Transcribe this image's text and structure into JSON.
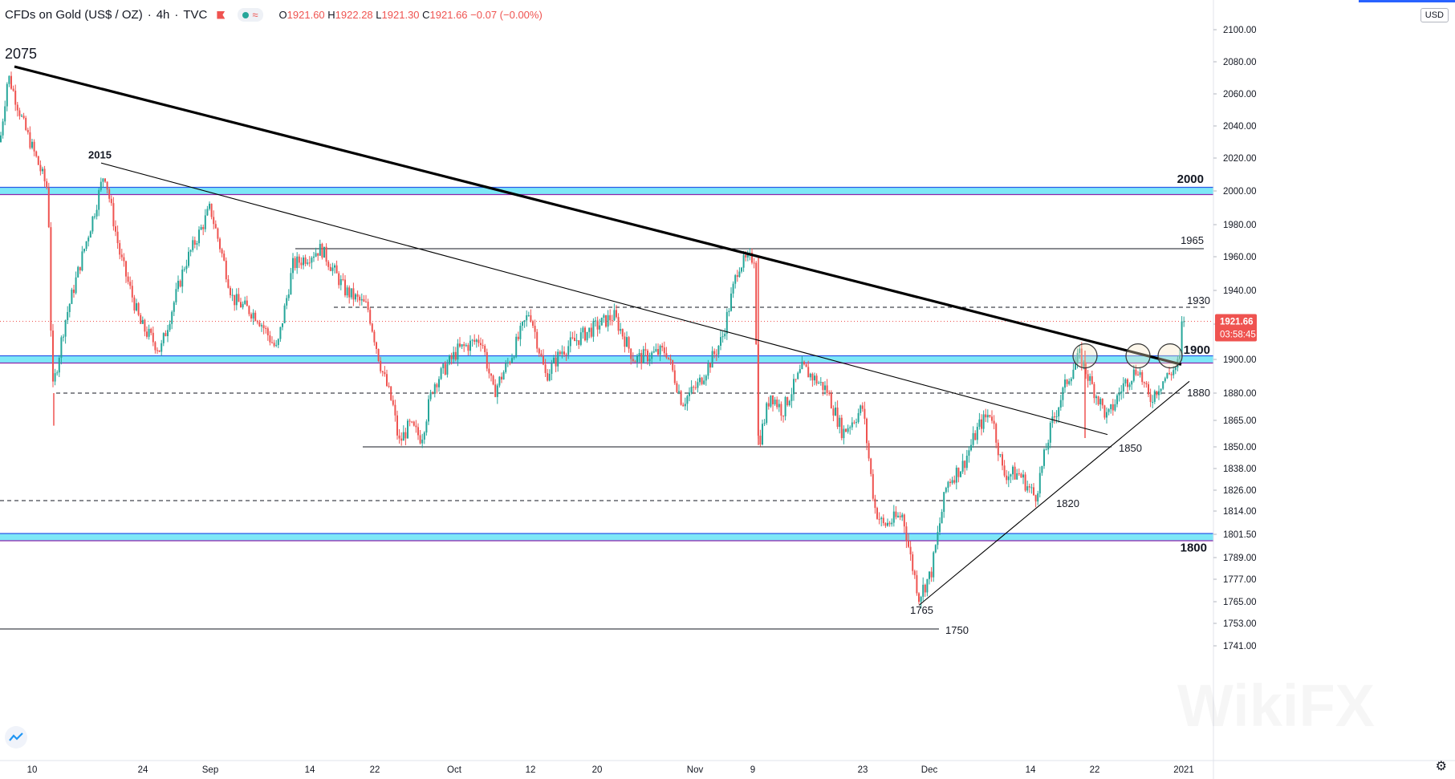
{
  "header": {
    "symbol": "CFDs on Gold (US$ / OZ)",
    "interval": "4h",
    "source": "TVC",
    "open_label": "O",
    "open": "1921.60",
    "high_label": "H",
    "high": "1922.28",
    "low_label": "L",
    "low": "1921.30",
    "close_label": "C",
    "close": "1921.66",
    "change": "−0.07 (−0.00%)"
  },
  "currency_button": "USD",
  "price_axis": {
    "ticks": [
      2100,
      2080,
      2060,
      2040,
      2020,
      2000,
      1980,
      1960,
      1940,
      1920,
      1900,
      1880,
      1865,
      1850,
      1838,
      1826,
      1814,
      1801.5,
      1789,
      1777,
      1765,
      1753,
      1741
    ],
    "tick_labels": [
      "2100.00",
      "2080.00",
      "2060.00",
      "2040.00",
      "2020.00",
      "2000.00",
      "1980.00",
      "1960.00",
      "1940.00",
      "1920.00",
      "1900.00",
      "1880.00",
      "1865.00",
      "1850.00",
      "1838.00",
      "1826.00",
      "1814.00",
      "1801.50",
      "1789.00",
      "1777.00",
      "1765.00",
      "1753.00",
      "1741.00"
    ],
    "last_price_label": "1921.66",
    "countdown_label": "03:58:45"
  },
  "colors": {
    "up": "#26a69a",
    "down": "#ef5350",
    "zone_fill": "#7ee8f7",
    "zone_border": "#2c59e8",
    "zone_inner": "#8e24aa",
    "trendline": "#000000",
    "price_line": "#ef5350",
    "axis_text": "#131722",
    "circle": "#d9c9a0"
  },
  "chart_data": {
    "type": "candlestick",
    "title": "CFDs on Gold (US$ / OZ) · 4h · TVC",
    "x_axis_labels": [
      "10",
      "24",
      "Sep",
      "14",
      "22",
      "Oct",
      "12",
      "20",
      "Nov",
      "9",
      "23",
      "Dec",
      "14",
      "22",
      "2021"
    ],
    "ylim": [
      1733,
      2105
    ],
    "path_points": [
      [
        0,
        2030
      ],
      [
        10,
        2072
      ],
      [
        30,
        2040
      ],
      [
        60,
        2000
      ],
      [
        65,
        1880
      ],
      [
        80,
        1920
      ],
      [
        120,
        1992
      ],
      [
        130,
        2012
      ],
      [
        150,
        1960
      ],
      [
        175,
        1920
      ],
      [
        200,
        1905
      ],
      [
        230,
        1955
      ],
      [
        262,
        1990
      ],
      [
        290,
        1935
      ],
      [
        320,
        1925
      ],
      [
        345,
        1905
      ],
      [
        365,
        1955
      ],
      [
        400,
        1965
      ],
      [
        430,
        1940
      ],
      [
        458,
        1930
      ],
      [
        475,
        1895
      ],
      [
        490,
        1872
      ],
      [
        497,
        1852
      ],
      [
        510,
        1862
      ],
      [
        525,
        1855
      ],
      [
        540,
        1885
      ],
      [
        570,
        1905
      ],
      [
        600,
        1912
      ],
      [
        615,
        1880
      ],
      [
        640,
        1905
      ],
      [
        660,
        1928
      ],
      [
        680,
        1890
      ],
      [
        700,
        1905
      ],
      [
        730,
        1915
      ],
      [
        765,
        1925
      ],
      [
        790,
        1900
      ],
      [
        830,
        1905
      ],
      [
        850,
        1875
      ],
      [
        870,
        1885
      ],
      [
        900,
        1912
      ],
      [
        920,
        1955
      ],
      [
        940,
        1960
      ],
      [
        945,
        1851
      ],
      [
        960,
        1880
      ],
      [
        975,
        1870
      ],
      [
        1000,
        1895
      ],
      [
        1030,
        1882
      ],
      [
        1050,
        1858
      ],
      [
        1075,
        1872
      ],
      [
        1090,
        1816
      ],
      [
        1100,
        1806
      ],
      [
        1125,
        1812
      ],
      [
        1135,
        1788
      ],
      [
        1145,
        1768
      ],
      [
        1160,
        1780
      ],
      [
        1180,
        1830
      ],
      [
        1200,
        1840
      ],
      [
        1220,
        1862
      ],
      [
        1235,
        1870
      ],
      [
        1250,
        1835
      ],
      [
        1270,
        1835
      ],
      [
        1290,
        1822
      ],
      [
        1310,
        1862
      ],
      [
        1330,
        1888
      ],
      [
        1345,
        1902
      ],
      [
        1360,
        1885
      ],
      [
        1380,
        1866
      ],
      [
        1400,
        1885
      ],
      [
        1418,
        1895
      ],
      [
        1432,
        1876
      ],
      [
        1450,
        1888
      ],
      [
        1465,
        1895
      ],
      [
        1470,
        1900
      ],
      [
        1476,
        1921.66
      ]
    ],
    "horizontal_levels": [
      {
        "label": "2075",
        "value": 2075,
        "style": "marker"
      },
      {
        "label": "2015",
        "value": 2015,
        "style": "marker"
      },
      {
        "label": "2000",
        "value": 2000,
        "style": "zone"
      },
      {
        "label": "1965",
        "value": 1965,
        "style": "solid"
      },
      {
        "label": "1930",
        "value": 1930,
        "style": "dashed"
      },
      {
        "label": "1900",
        "value": 1900,
        "style": "zone"
      },
      {
        "label": "1880",
        "value": 1880,
        "style": "dashed"
      },
      {
        "label": "1850",
        "value": 1850,
        "style": "solid"
      },
      {
        "label": "1820",
        "value": 1820,
        "style": "dashed"
      },
      {
        "label": "1800",
        "value": 1800,
        "style": "zone"
      },
      {
        "label": "1765",
        "value": 1765,
        "style": "marker"
      },
      {
        "label": "1750",
        "value": 1750,
        "style": "solid"
      }
    ],
    "trendlines": [
      {
        "from": [
          18,
          2077
        ],
        "to": [
          1472,
          1897
        ],
        "weight": "thick"
      },
      {
        "from": [
          126,
          2017
        ],
        "to": [
          1380,
          1857
        ],
        "weight": "thin"
      },
      {
        "from": [
          1145,
          1763
        ],
        "to": [
          1482,
          1887
        ],
        "weight": "thin"
      }
    ],
    "circles": [
      1352,
      1418,
      1458
    ],
    "last_price": 1921.66
  },
  "watermark_text": "WikiFX"
}
